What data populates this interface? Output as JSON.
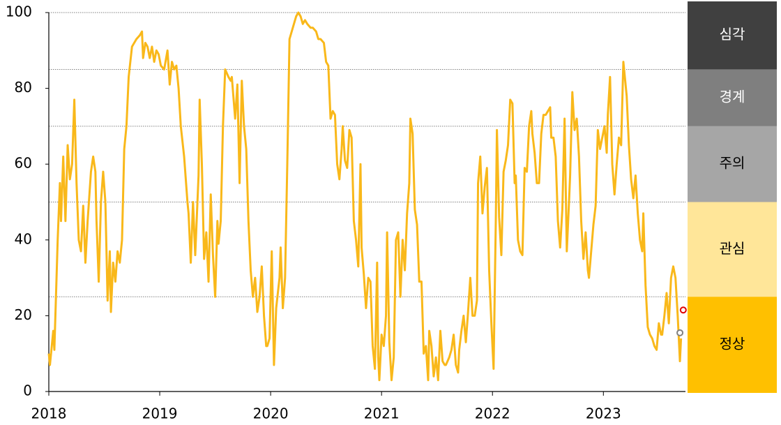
{
  "chart_data": {
    "type": "line",
    "x": [
      2018.0,
      2018.01,
      2018.04,
      2018.05,
      2018.08,
      2018.1,
      2018.11,
      2018.13,
      2018.15,
      2018.17,
      2018.19,
      2018.21,
      2018.23,
      2018.25,
      2018.27,
      2018.29,
      2018.31,
      2018.33,
      2018.35,
      2018.38,
      2018.4,
      2018.42,
      2018.43,
      2018.45,
      2018.47,
      2018.49,
      2018.51,
      2018.53,
      2018.55,
      2018.56,
      2018.58,
      2018.6,
      2018.62,
      2018.64,
      2018.66,
      2018.68,
      2018.7,
      2018.72,
      2018.75,
      2018.79,
      2018.82,
      2018.84,
      2018.85,
      2018.87,
      2018.89,
      2018.91,
      2018.93,
      2018.95,
      2018.97,
      2018.99,
      2019.01,
      2019.04,
      2019.07,
      2019.09,
      2019.11,
      2019.13,
      2019.15,
      2019.17,
      2019.19,
      2019.22,
      2019.25,
      2019.26,
      2019.28,
      2019.3,
      2019.32,
      2019.35,
      2019.36,
      2019.38,
      2019.4,
      2019.42,
      2019.44,
      2019.46,
      2019.48,
      2019.5,
      2019.52,
      2019.53,
      2019.55,
      2019.57,
      2019.59,
      2019.62,
      2019.64,
      2019.65,
      2019.68,
      2019.7,
      2019.72,
      2019.74,
      2019.76,
      2019.78,
      2019.8,
      2019.82,
      2019.84,
      2019.86,
      2019.88,
      2019.9,
      2019.92,
      2019.94,
      2019.96,
      2019.97,
      2019.99,
      2020.01,
      2020.03,
      2020.05,
      2020.08,
      2020.09,
      2020.11,
      2020.13,
      2020.15,
      2020.17,
      2020.2,
      2020.23,
      2020.25,
      2020.27,
      2020.29,
      2020.31,
      2020.33,
      2020.36,
      2020.38,
      2020.41,
      2020.43,
      2020.45,
      2020.48,
      2020.5,
      2020.52,
      2020.54,
      2020.56,
      2020.58,
      2020.6,
      2020.62,
      2020.64,
      2020.65,
      2020.67,
      2020.69,
      2020.71,
      2020.73,
      2020.75,
      2020.77,
      2020.79,
      2020.81,
      2020.82,
      2020.84,
      2020.86,
      2020.88,
      2020.9,
      2020.92,
      2020.94,
      2020.96,
      2020.97,
      2020.98,
      2021.0,
      2021.02,
      2021.04,
      2021.05,
      2021.07,
      2021.09,
      2021.11,
      2021.13,
      2021.15,
      2021.17,
      2021.19,
      2021.21,
      2021.23,
      2021.25,
      2021.26,
      2021.28,
      2021.3,
      2021.32,
      2021.34,
      2021.36,
      2021.38,
      2021.4,
      2021.42,
      2021.43,
      2021.45,
      2021.47,
      2021.49,
      2021.51,
      2021.53,
      2021.55,
      2021.57,
      2021.58,
      2021.61,
      2021.63,
      2021.65,
      2021.67,
      2021.69,
      2021.7,
      2021.72,
      2021.74,
      2021.76,
      2021.78,
      2021.8,
      2021.82,
      2021.84,
      2021.86,
      2021.87,
      2021.89,
      2021.91,
      2021.93,
      2021.95,
      2021.97,
      2021.99,
      2022.01,
      2022.03,
      2022.04,
      2022.06,
      2022.08,
      2022.1,
      2022.12,
      2022.14,
      2022.16,
      2022.18,
      2022.2,
      2022.21,
      2022.23,
      2022.25,
      2022.27,
      2022.29,
      2022.31,
      2022.33,
      2022.35,
      2022.36,
      2022.38,
      2022.4,
      2022.42,
      2022.44,
      2022.46,
      2022.48,
      2022.5,
      2022.52,
      2022.53,
      2022.55,
      2022.57,
      2022.59,
      2022.61,
      2022.63,
      2022.65,
      2022.67,
      2022.69,
      2022.7,
      2022.72,
      2022.74,
      2022.76,
      2022.78,
      2022.8,
      2022.82,
      2022.84,
      2022.86,
      2022.87,
      2022.89,
      2022.91,
      2022.93,
      2022.95,
      2022.97,
      2022.99,
      2023.01,
      2023.03,
      2023.04,
      2023.06,
      2023.08,
      2023.1,
      2023.12,
      2023.14,
      2023.16,
      2023.18,
      2023.2,
      2023.21,
      2023.23,
      2023.25,
      2023.27,
      2023.29,
      2023.31,
      2023.33,
      2023.35,
      2023.36,
      2023.38,
      2023.4,
      2023.42,
      2023.44,
      2023.46,
      2023.48,
      2023.5,
      2023.52,
      2023.53,
      2023.55,
      2023.57,
      2023.59,
      2023.61,
      2023.63,
      2023.65,
      2023.67,
      2023.69,
      2023.7
    ],
    "series": [
      {
        "color": "#f9b81a",
        "values": [
          10,
          7,
          16,
          11,
          40,
          55,
          45,
          62,
          45,
          65,
          56,
          60,
          77,
          55,
          40,
          37,
          49,
          34,
          45,
          58,
          62,
          58,
          45,
          29,
          50,
          58,
          50,
          24,
          37,
          21,
          34,
          29,
          37,
          34,
          40,
          64,
          70,
          83,
          91,
          93,
          94,
          95,
          88,
          92,
          91,
          88,
          91,
          87,
          90,
          89,
          86,
          85,
          90,
          81,
          87,
          85,
          86,
          80,
          70,
          62,
          50,
          47,
          34,
          50,
          36,
          57,
          77,
          60,
          35,
          42,
          29,
          52,
          36,
          25,
          45,
          39,
          45,
          70,
          85,
          83,
          82,
          83,
          72,
          81,
          55,
          82,
          70,
          64,
          45,
          32,
          25,
          30,
          21,
          25,
          33,
          20,
          12,
          12,
          14,
          37,
          7,
          22,
          30,
          38,
          22,
          30,
          60,
          93,
          96,
          99,
          100,
          99,
          97,
          98,
          97,
          96,
          96,
          95,
          93,
          93,
          92,
          87,
          86,
          72,
          74,
          73,
          60,
          56,
          64,
          70,
          61,
          59,
          69,
          67,
          45,
          40,
          33,
          60,
          38,
          31,
          22,
          30,
          29,
          12,
          6,
          34,
          9,
          3,
          15,
          12,
          20,
          42,
          13,
          3,
          9,
          40,
          42,
          25,
          40,
          32,
          47,
          55,
          72,
          68,
          48,
          44,
          29,
          29,
          10,
          12,
          3,
          16,
          12,
          4,
          9,
          3,
          16,
          8,
          7,
          7,
          9,
          11,
          15,
          7,
          5,
          11,
          16,
          20,
          13,
          21,
          30,
          20,
          20,
          24,
          55,
          62,
          47,
          54,
          59,
          32,
          18,
          6,
          45,
          69,
          46,
          36,
          58,
          61,
          65,
          77,
          76,
          55,
          57,
          40,
          37,
          36,
          59,
          58,
          70,
          74,
          68,
          63,
          55,
          55,
          68,
          73,
          73,
          74,
          75,
          67,
          67,
          62,
          45,
          38,
          48,
          72,
          37,
          50,
          57,
          79,
          69,
          72,
          62,
          45,
          35,
          42,
          32,
          30,
          37,
          44,
          49,
          69,
          64,
          67,
          70,
          63,
          73,
          83,
          60,
          52,
          60,
          67,
          65,
          87,
          81,
          78,
          65,
          56,
          51,
          57,
          47,
          40,
          37,
          47,
          28,
          17,
          15,
          14,
          12,
          11,
          18,
          15,
          15,
          20,
          26,
          18,
          30,
          33,
          30,
          20,
          8,
          14
        ]
      }
    ],
    "points": [
      {
        "x": 2023.72,
        "y": 21.5,
        "color": "#e00000"
      },
      {
        "x": 2023.69,
        "y": 15.5,
        "color": "#808080"
      }
    ],
    "xlim": [
      2018,
      2023.74
    ],
    "xticks": [
      2018,
      2019,
      2020,
      2021,
      2022,
      2023
    ],
    "ylim": [
      0,
      100
    ],
    "yticks": [
      0,
      20,
      40,
      60,
      80,
      100
    ],
    "bands": [
      {
        "label": "심각",
        "from": 85,
        "to": 100,
        "color": "#404040",
        "text_color": "#ffffff"
      },
      {
        "label": "경계",
        "from": 70,
        "to": 85,
        "color": "#7f7f7f",
        "text_color": "#ffffff"
      },
      {
        "label": "주의",
        "from": 50,
        "to": 70,
        "color": "#a6a6a6",
        "text_color": "#000000"
      },
      {
        "label": "관심",
        "from": 25,
        "to": 50,
        "color": "#ffe699",
        "text_color": "#000000"
      },
      {
        "label": "정상",
        "from": 0,
        "to": 25,
        "color": "#ffc000",
        "text_color": "#000000"
      }
    ]
  }
}
